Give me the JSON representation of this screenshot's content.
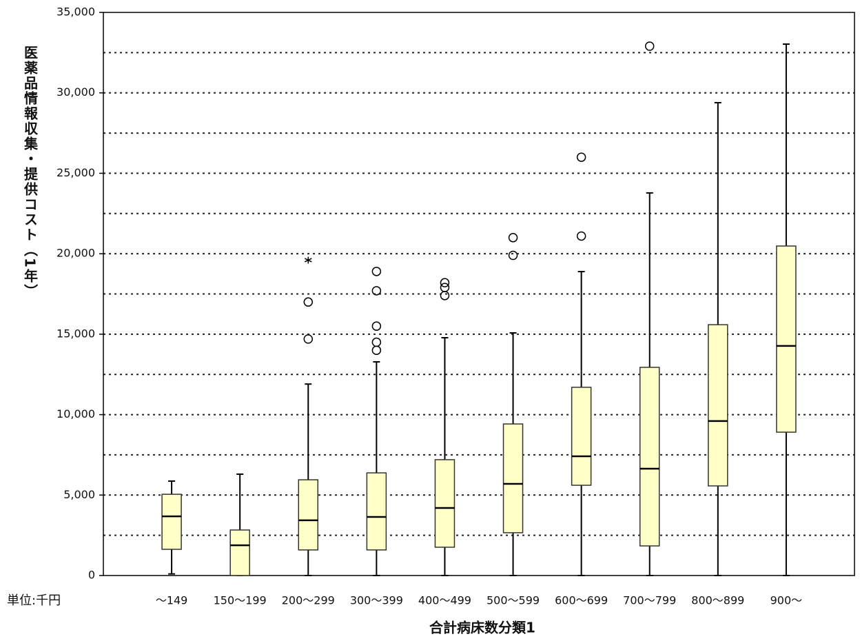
{
  "chart_data": {
    "type": "box",
    "y_label": "医薬品情報収集・提供コスト（1年）",
    "x_label": "合計病床数分類1",
    "unit_label": "単位:千円",
    "categories": [
      "～149",
      "150～199",
      "200～299",
      "300～399",
      "400～499",
      "500～599",
      "600～699",
      "700～799",
      "800～899",
      "900～"
    ],
    "color": "#ffffc8",
    "boxes": [
      {
        "low": 100,
        "q1": 1630,
        "median": 3680,
        "q3": 5050,
        "high": 5870,
        "outliers": [],
        "extremes": []
      },
      {
        "low": 0,
        "q1": 0,
        "median": 1880,
        "q3": 2830,
        "high": 6300,
        "outliers": [],
        "extremes": []
      },
      {
        "low": 0,
        "q1": 1590,
        "median": 3430,
        "q3": 5950,
        "high": 11900,
        "outliers": [
          14700,
          17000
        ],
        "extremes": [
          19600
        ]
      },
      {
        "low": 0,
        "q1": 1590,
        "median": 3640,
        "q3": 6380,
        "high": 13280,
        "outliers": [
          14000,
          14500,
          15500,
          17700,
          18900
        ],
        "extremes": []
      },
      {
        "low": 0,
        "q1": 1760,
        "median": 4200,
        "q3": 7200,
        "high": 14780,
        "outliers": [
          17400,
          17900,
          18200
        ],
        "extremes": []
      },
      {
        "low": 0,
        "q1": 2660,
        "median": 5700,
        "q3": 9420,
        "high": 15080,
        "outliers": [
          19900,
          21000
        ],
        "extremes": []
      },
      {
        "low": 0,
        "q1": 5610,
        "median": 7410,
        "q3": 11700,
        "high": 18890,
        "outliers": [
          21100,
          26000
        ],
        "extremes": []
      },
      {
        "low": 0,
        "q1": 1840,
        "median": 6640,
        "q3": 12940,
        "high": 23780,
        "outliers": [
          32900
        ],
        "extremes": []
      },
      {
        "low": 0,
        "q1": 5570,
        "median": 9600,
        "q3": 15590,
        "high": 29390,
        "outliers": [],
        "extremes": []
      },
      {
        "low": 0,
        "q1": 8910,
        "median": 14270,
        "q3": 20480,
        "high": 33030,
        "outliers": [],
        "extremes": []
      }
    ],
    "ylim": [
      0,
      35000
    ],
    "yticks": [
      0,
      {
        "value": 5000,
        "label": "5,000"
      },
      {
        "value": 10000,
        "label": "10,000"
      },
      {
        "value": 15000,
        "label": "15,000"
      },
      {
        "value": 20000,
        "label": "20,000"
      },
      {
        "value": 25000,
        "label": "25,000"
      },
      {
        "value": 30000,
        "label": "30,000"
      },
      {
        "value": 35000,
        "label": "35,000"
      }
    ],
    "minor_yticks": [
      2500,
      7500,
      12500,
      17500,
      22500,
      27500,
      32500
    ],
    "grid": true
  }
}
